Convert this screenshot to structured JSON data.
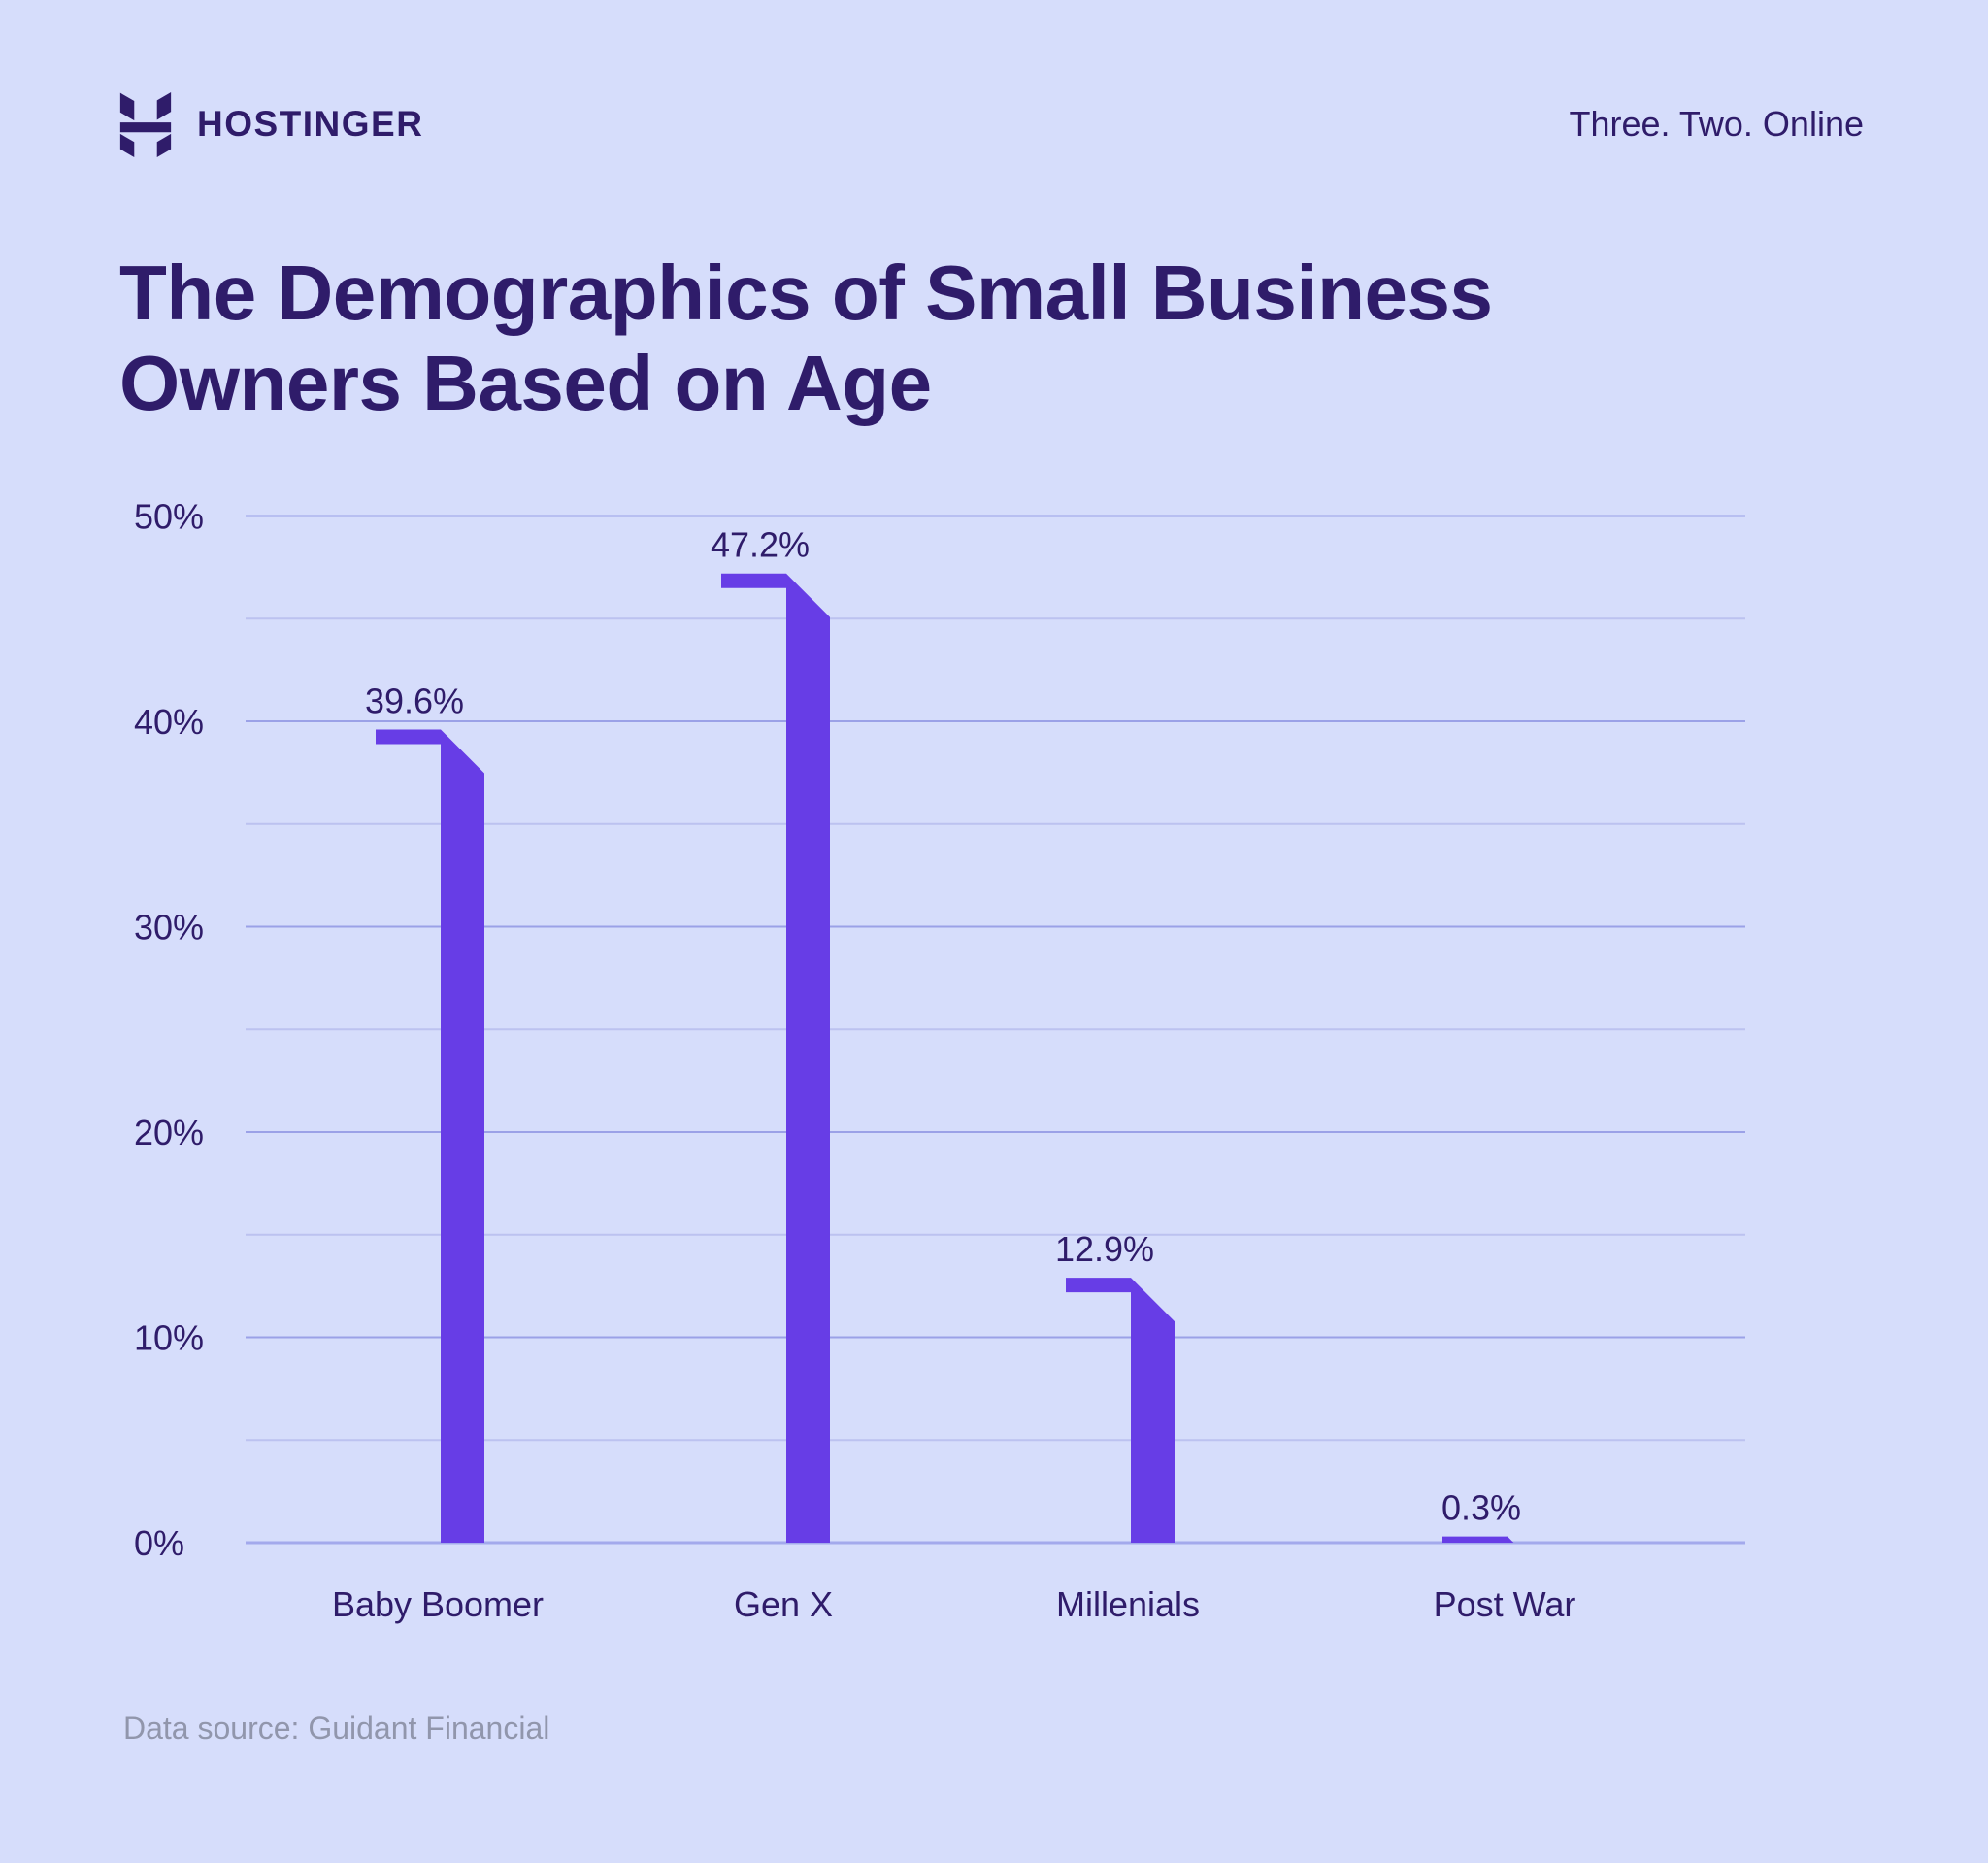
{
  "page": {
    "background_color": "#D6DDFB",
    "text_color": "#2F1C6A",
    "accent_color": "#673DE6"
  },
  "header": {
    "brand": "HOSTINGER",
    "tagline": "Three. Two. Online",
    "logo_icon": "hostinger-h-logo"
  },
  "title": "The Demographics of Small Business Owners Based on Age",
  "footer": {
    "source_note": "Data source: Guidant Financial"
  },
  "chart_data": {
    "type": "bar",
    "title": "The Demographics of Small Business Owners Based on Age",
    "categories": [
      "Baby Boomer",
      "Gen X",
      "Millenials",
      "Post War"
    ],
    "values": [
      39.6,
      47.2,
      12.9,
      0.3
    ],
    "value_labels": [
      "39.6%",
      "47.2%",
      "12.9%",
      "0.3%"
    ],
    "xlabel": "",
    "ylabel": "",
    "ylim": [
      0,
      50
    ],
    "ytick_values": [
      0,
      10,
      20,
      30,
      40,
      50
    ],
    "ytick_labels": [
      "0%",
      "10%",
      "20%",
      "30%",
      "40%",
      "50%"
    ],
    "minor_grid_step": 5,
    "grid": "horizontal",
    "legend": "none",
    "bar_color": "#673DE6",
    "label_color": "#2F1C6A",
    "gridline_major_color": "#9BA1E7",
    "gridline_minor_color": "#BCC2F0",
    "baseline_color": "#A3A9EC",
    "source": "Data source: Guidant Financial"
  }
}
